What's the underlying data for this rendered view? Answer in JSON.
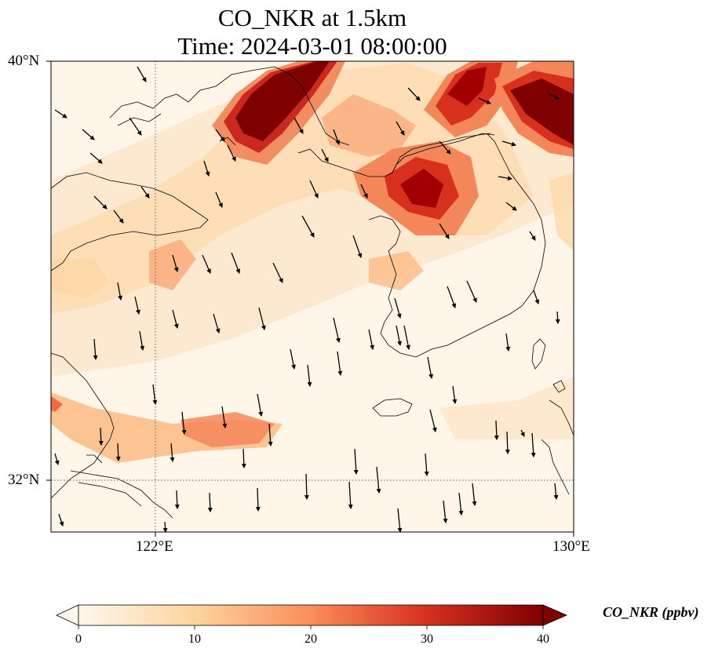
{
  "title": {
    "line1": "CO_NKR at 1.5km",
    "line2": "Time: 2024-03-01 08:00:00"
  },
  "map": {
    "extent_lon": [
      120.4,
      130.0
    ],
    "extent_lat": [
      31.2,
      40.0
    ],
    "lon_ticks": [
      {
        "value": 122,
        "label": "122°E"
      },
      {
        "value": 130,
        "label": "130°E"
      }
    ],
    "lat_ticks": [
      {
        "value": 40,
        "label": "40°N"
      },
      {
        "value": 32,
        "label": "32°N"
      }
    ],
    "gridlines": "dotted",
    "field_icon": "concentration-heatmap",
    "wind_icon": "wind-vector-arrows"
  },
  "colorbar": {
    "label": "CO_NKR (ppbv)",
    "min": 0,
    "max": 40,
    "extend": "both",
    "colormap": "OrRd",
    "ticks": [
      {
        "value": 0,
        "label": "0"
      },
      {
        "value": 10,
        "label": "10"
      },
      {
        "value": 20,
        "label": "20"
      },
      {
        "value": 30,
        "label": "30"
      },
      {
        "value": 40,
        "label": "40"
      }
    ],
    "colors": [
      "#fff7ec",
      "#fdd49e",
      "#fc8d59",
      "#d7301f",
      "#7f0000"
    ]
  }
}
